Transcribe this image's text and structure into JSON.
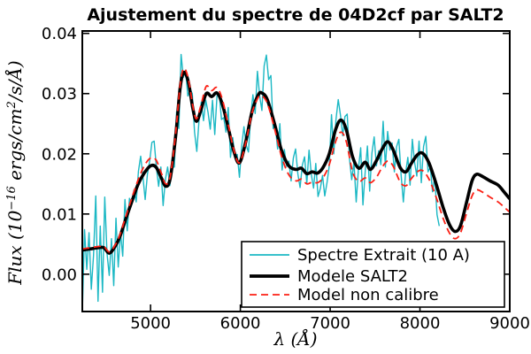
{
  "title": "Ajustement du spectre de 04D2cf par SALT2",
  "title_color": "#ee0000",
  "chart_data": {
    "type": "line",
    "title": "Ajustement du spectre de 04D2cf par SALT2",
    "xlabel": "λ (Å)",
    "ylabel": "Flux (10⁻¹⁶ ergs/cm²/s/Å)",
    "ylabel_parts": [
      {
        "t": "Flux (10",
        "sup": false
      },
      {
        "t": "−16",
        "sup": true
      },
      {
        "t": " ergs/cm",
        "sup": false
      },
      {
        "t": "2",
        "sup": true
      },
      {
        "t": "/s/Å)",
        "sup": false
      }
    ],
    "xlim": [
      4240,
      9000
    ],
    "ylim": [
      -0.0062,
      0.0404
    ],
    "grid": false,
    "legend_position": "lower right",
    "x_ticks": [
      5000,
      6000,
      7000,
      8000,
      9000
    ],
    "x_tick_labels": [
      "5000",
      "6000",
      "7000",
      "8000",
      "9000"
    ],
    "y_ticks": [
      0.0,
      0.01,
      0.02,
      0.03,
      0.04
    ],
    "y_tick_labels": [
      "0.00",
      "0.01",
      "0.02",
      "0.03",
      "0.04"
    ],
    "series": [
      {
        "name": "Spectre Extrait (10 A)",
        "color": "#1bb8c4",
        "style": "solid",
        "line_width": 1.4,
        "smooth": false,
        "x_start": 4240,
        "x_step": 25,
        "y_scale": 0.001,
        "values": [
          -6.5,
          7.4,
          0.8,
          6.9,
          -2.5,
          3.1,
          13.0,
          -4.5,
          8.0,
          -3.0,
          12.8,
          3.5,
          -0.2,
          5.9,
          -1.9,
          9.3,
          1.2,
          7.0,
          3.0,
          12.4,
          7.2,
          12.6,
          11.6,
          14.0,
          12.0,
          17.1,
          19.6,
          16.2,
          12.4,
          16.6,
          18.8,
          21.9,
          22.1,
          17.7,
          14.6,
          17.8,
          11.4,
          15.7,
          17.8,
          14.7,
          17.7,
          17.8,
          27.0,
          24.2,
          36.5,
          32.7,
          33.9,
          29.6,
          30.7,
          30.0,
          23.6,
          20.4,
          25.6,
          28.6,
          25.5,
          28.9,
          26.9,
          24.1,
          28.9,
          23.2,
          29.7,
          29.9,
          25.7,
          26.0,
          23.6,
          27.7,
          19.4,
          22.7,
          19.3,
          19.9,
          16.1,
          21.3,
          24.5,
          21.4,
          20.3,
          26.2,
          29.8,
          26.7,
          33.7,
          29.6,
          27.2,
          34.6,
          36.4,
          32.3,
          33.0,
          24.2,
          24.5,
          20.8,
          25.0,
          17.3,
          20.7,
          17.9,
          18.8,
          15.5,
          19.3,
          20.8,
          16.7,
          14.4,
          18.1,
          19.5,
          15.1,
          20.6,
          16.6,
          14.3,
          18.4,
          12.9,
          14.2,
          16.4,
          13.0,
          15.2,
          18.0,
          26.5,
          20.0,
          25.7,
          29.0,
          26.4,
          23.0,
          26.2,
          26.6,
          19.2,
          15.7,
          18.6,
          12.0,
          17.5,
          21.0,
          11.5,
          17.0,
          21.3,
          13.8,
          20.1,
          22.8,
          18.0,
          20.5,
          18.2,
          25.4,
          17.8,
          23.7,
          20.6,
          21.8,
          17.0,
          21.2,
          22.4,
          16.5,
          12.0,
          16.8,
          19.4,
          14.8,
          22.4,
          18.6,
          16.3,
          22.1,
          15.2,
          21.2,
          22.9,
          17.0,
          17.8,
          13.7,
          16.2,
          9.9,
          8.0
        ]
      },
      {
        "name": "Modele SALT2",
        "color": "#000000",
        "style": "solid",
        "line_width": 3.6,
        "smooth": true,
        "y_scale": 0.001,
        "x": [
          4240,
          4330,
          4420,
          4480,
          4540,
          4600,
          4660,
          4720,
          4790,
          4860,
          4930,
          5000,
          5060,
          5120,
          5170,
          5220,
          5280,
          5330,
          5370,
          5420,
          5470,
          5510,
          5560,
          5620,
          5680,
          5740,
          5800,
          5870,
          5930,
          5990,
          6060,
          6130,
          6200,
          6240,
          6300,
          6380,
          6460,
          6540,
          6620,
          6680,
          6740,
          6800,
          6860,
          6920,
          6990,
          7060,
          7120,
          7180,
          7250,
          7320,
          7390,
          7450,
          7520,
          7580,
          7640,
          7700,
          7780,
          7845,
          7900,
          7970,
          8030,
          8100,
          8180,
          8260,
          8330,
          8390,
          8450,
          8520,
          8580,
          8630,
          8700,
          8780,
          8870,
          8940,
          9000
        ],
        "y": [
          4.0,
          4.2,
          4.4,
          4.4,
          3.5,
          4.5,
          6.3,
          9.0,
          12.0,
          14.9,
          16.8,
          18.0,
          17.8,
          16.0,
          14.6,
          16.0,
          23.0,
          31.0,
          33.5,
          32.0,
          27.6,
          25.4,
          27.2,
          30.0,
          29.5,
          30.1,
          28.2,
          24.0,
          20.3,
          18.5,
          22.0,
          27.0,
          29.8,
          30.1,
          29.0,
          25.0,
          20.5,
          18.0,
          17.4,
          17.6,
          16.7,
          17.0,
          16.8,
          17.7,
          20.0,
          24.0,
          25.6,
          24.0,
          19.5,
          17.6,
          18.6,
          17.4,
          19.0,
          20.8,
          22.0,
          20.7,
          17.7,
          17.0,
          18.3,
          19.8,
          20.1,
          18.5,
          15.0,
          11.0,
          8.2,
          7.1,
          8.0,
          12.0,
          15.5,
          16.6,
          16.2,
          15.5,
          14.8,
          13.6,
          12.5
        ]
      },
      {
        "name": "Model non calibre",
        "color": "#fb2015",
        "style": "dashed",
        "line_width": 1.8,
        "smooth": true,
        "y_scale": 0.001,
        "x": [
          4240,
          4330,
          4420,
          4480,
          4540,
          4600,
          4660,
          4720,
          4790,
          4860,
          4930,
          5000,
          5060,
          5120,
          5170,
          5220,
          5280,
          5330,
          5370,
          5420,
          5470,
          5510,
          5560,
          5620,
          5680,
          5740,
          5800,
          5870,
          5930,
          5990,
          6060,
          6130,
          6200,
          6240,
          6300,
          6380,
          6460,
          6540,
          6620,
          6680,
          6740,
          6800,
          6860,
          6920,
          6990,
          7060,
          7120,
          7180,
          7250,
          7320,
          7390,
          7450,
          7520,
          7580,
          7640,
          7700,
          7780,
          7845,
          7900,
          7970,
          8030,
          8100,
          8180,
          8260,
          8330,
          8390,
          8450,
          8520,
          8580,
          8630,
          8700,
          8780,
          8870,
          8940,
          9000
        ],
        "y": [
          4.2,
          4.4,
          4.6,
          4.6,
          3.7,
          4.7,
          6.6,
          9.4,
          12.6,
          15.6,
          18.0,
          19.3,
          19.0,
          16.8,
          15.0,
          16.3,
          23.5,
          31.5,
          34.2,
          32.5,
          28.0,
          25.8,
          28.0,
          31.2,
          30.5,
          31.0,
          29.0,
          24.5,
          20.5,
          18.5,
          21.8,
          26.8,
          29.4,
          29.6,
          28.4,
          24.2,
          19.5,
          16.5,
          15.5,
          15.8,
          15.0,
          15.3,
          15.2,
          16.0,
          18.2,
          22.0,
          23.6,
          22.0,
          17.0,
          15.4,
          16.0,
          15.2,
          16.2,
          17.8,
          18.8,
          18.0,
          15.3,
          14.7,
          15.8,
          17.0,
          17.2,
          15.8,
          12.8,
          9.2,
          6.8,
          5.9,
          6.8,
          10.2,
          13.0,
          14.0,
          13.6,
          12.8,
          12.0,
          11.1,
          10.3
        ]
      }
    ]
  }
}
